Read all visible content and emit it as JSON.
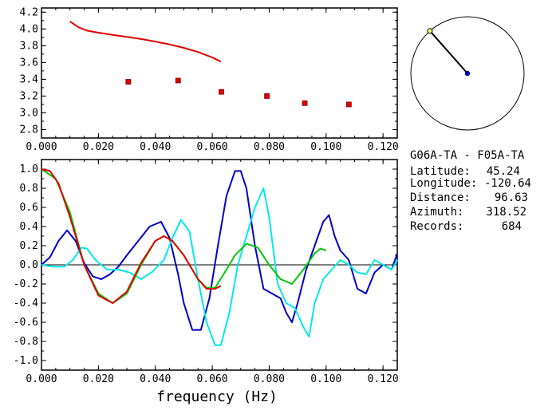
{
  "colors": {
    "red": "#e00000",
    "blue": "#0000c8",
    "cyan": "#00e8e8",
    "green": "#00c800",
    "marker_fill": "#e00000"
  },
  "info": {
    "station_pair": "G06A-TA - F05A-TA",
    "rows": [
      {
        "label": "Latitude:",
        "value": "45.24"
      },
      {
        "label": "Longitude:",
        "value": "-120.64"
      },
      {
        "label": "Distance:",
        "value": "96.63"
      },
      {
        "label": "Azimuth:",
        "value": "318.52"
      },
      {
        "label": "Records:",
        "value": "684"
      }
    ]
  },
  "compass": {
    "azimuth_deg": 318.52
  },
  "chart_data": [
    {
      "type": "line",
      "name": "velocity-panel",
      "xlim": [
        0.0,
        0.125
      ],
      "ylim": [
        2.7,
        4.25
      ],
      "xticks": [
        "0.000",
        "0.020",
        "0.040",
        "0.060",
        "0.080",
        "0.100",
        "0.120"
      ],
      "yticks": [
        "2.8",
        "3.0",
        "3.2",
        "3.4",
        "3.6",
        "3.8",
        "4.0",
        "4.2"
      ],
      "series": [
        {
          "kind": "line",
          "color": "red",
          "x": [
            0.01,
            0.013,
            0.016,
            0.02,
            0.025,
            0.03,
            0.035,
            0.04,
            0.045,
            0.05,
            0.055,
            0.06,
            0.063
          ],
          "y": [
            4.09,
            4.02,
            3.98,
            3.955,
            3.93,
            3.905,
            3.88,
            3.85,
            3.815,
            3.775,
            3.725,
            3.66,
            3.61
          ]
        },
        {
          "kind": "scatter",
          "color": "red",
          "x": [
            0.0305,
            0.048,
            0.0632,
            0.0792,
            0.0925,
            0.108
          ],
          "y": [
            3.37,
            3.385,
            3.25,
            3.2,
            3.115,
            3.1
          ]
        }
      ]
    },
    {
      "type": "line",
      "name": "correlation-panel",
      "xlim": [
        0.0,
        0.125
      ],
      "ylim": [
        -1.1,
        1.1
      ],
      "xlabel": "frequency (Hz)",
      "xticks": [
        "0.000",
        "0.020",
        "0.040",
        "0.060",
        "0.080",
        "0.100",
        "0.120"
      ],
      "yticks": [
        "1.0",
        "0.8",
        "0.6",
        "0.4",
        "0.2",
        "0.0",
        "-0.2",
        "-0.4",
        "-0.6",
        "-0.8",
        "-1.0"
      ],
      "series": [
        {
          "color": "blue",
          "x": [
            0.0,
            0.003,
            0.006,
            0.009,
            0.012,
            0.015,
            0.018,
            0.021,
            0.024,
            0.027,
            0.03,
            0.034,
            0.038,
            0.042,
            0.045,
            0.048,
            0.05,
            0.053,
            0.056,
            0.059,
            0.062,
            0.065,
            0.068,
            0.07,
            0.072,
            0.075,
            0.078,
            0.081,
            0.084,
            0.086,
            0.088,
            0.09,
            0.093,
            0.096,
            0.099,
            0.101,
            0.103,
            0.105,
            0.108,
            0.111,
            0.114,
            0.117,
            0.12,
            0.123,
            0.125
          ],
          "y": [
            0.0,
            0.08,
            0.25,
            0.36,
            0.25,
            0.02,
            -0.12,
            -0.15,
            -0.1,
            -0.02,
            0.1,
            0.25,
            0.4,
            0.45,
            0.28,
            -0.1,
            -0.4,
            -0.68,
            -0.68,
            -0.35,
            0.2,
            0.72,
            0.98,
            0.98,
            0.8,
            0.2,
            -0.25,
            -0.3,
            -0.35,
            -0.5,
            -0.6,
            -0.4,
            -0.05,
            0.2,
            0.45,
            0.52,
            0.3,
            0.15,
            0.05,
            -0.25,
            -0.3,
            -0.08,
            0.0,
            -0.05,
            0.12
          ]
        },
        {
          "color": "cyan",
          "x": [
            0.0,
            0.004,
            0.008,
            0.011,
            0.014,
            0.016,
            0.019,
            0.023,
            0.027,
            0.031,
            0.035,
            0.039,
            0.043,
            0.046,
            0.049,
            0.052,
            0.055,
            0.058,
            0.061,
            0.063,
            0.066,
            0.069,
            0.072,
            0.075,
            0.078,
            0.08,
            0.083,
            0.086,
            0.089,
            0.092,
            0.094,
            0.096,
            0.099,
            0.102,
            0.105,
            0.108,
            0.111,
            0.114,
            0.117,
            0.12,
            0.123,
            0.125
          ],
          "y": [
            0.0,
            -0.02,
            -0.02,
            0.05,
            0.18,
            0.17,
            0.05,
            -0.05,
            -0.05,
            -0.08,
            -0.15,
            -0.07,
            0.05,
            0.28,
            0.47,
            0.35,
            -0.15,
            -0.6,
            -0.84,
            -0.84,
            -0.5,
            0.0,
            0.3,
            0.6,
            0.8,
            0.5,
            -0.2,
            -0.4,
            -0.45,
            -0.65,
            -0.75,
            -0.4,
            -0.15,
            -0.05,
            0.05,
            0.0,
            -0.08,
            -0.1,
            0.05,
            0.0,
            -0.05,
            0.05
          ]
        },
        {
          "color": "green",
          "x": [
            0.0,
            0.005,
            0.01,
            0.015,
            0.02,
            0.025,
            0.03,
            0.035,
            0.04,
            0.043,
            0.046,
            0.05,
            0.055,
            0.058,
            0.061,
            0.065,
            0.068,
            0.072,
            0.076,
            0.08,
            0.084,
            0.088,
            0.092,
            0.096,
            0.098,
            0.1
          ],
          "y": [
            1.0,
            0.9,
            0.55,
            0.0,
            -0.3,
            -0.4,
            -0.3,
            0.0,
            0.25,
            0.3,
            0.25,
            0.1,
            -0.15,
            -0.24,
            -0.24,
            -0.05,
            0.1,
            0.22,
            0.18,
            0.0,
            -0.15,
            -0.2,
            -0.05,
            0.12,
            0.17,
            0.15
          ]
        },
        {
          "color": "red",
          "x": [
            0.0,
            0.003,
            0.006,
            0.01,
            0.015,
            0.02,
            0.025,
            0.03,
            0.035,
            0.04,
            0.043,
            0.046,
            0.05,
            0.055,
            0.058,
            0.061,
            0.063
          ],
          "y": [
            1.0,
            0.98,
            0.85,
            0.5,
            0.0,
            -0.32,
            -0.4,
            -0.28,
            0.02,
            0.25,
            0.3,
            0.25,
            0.1,
            -0.15,
            -0.25,
            -0.25,
            -0.22
          ]
        }
      ]
    }
  ]
}
